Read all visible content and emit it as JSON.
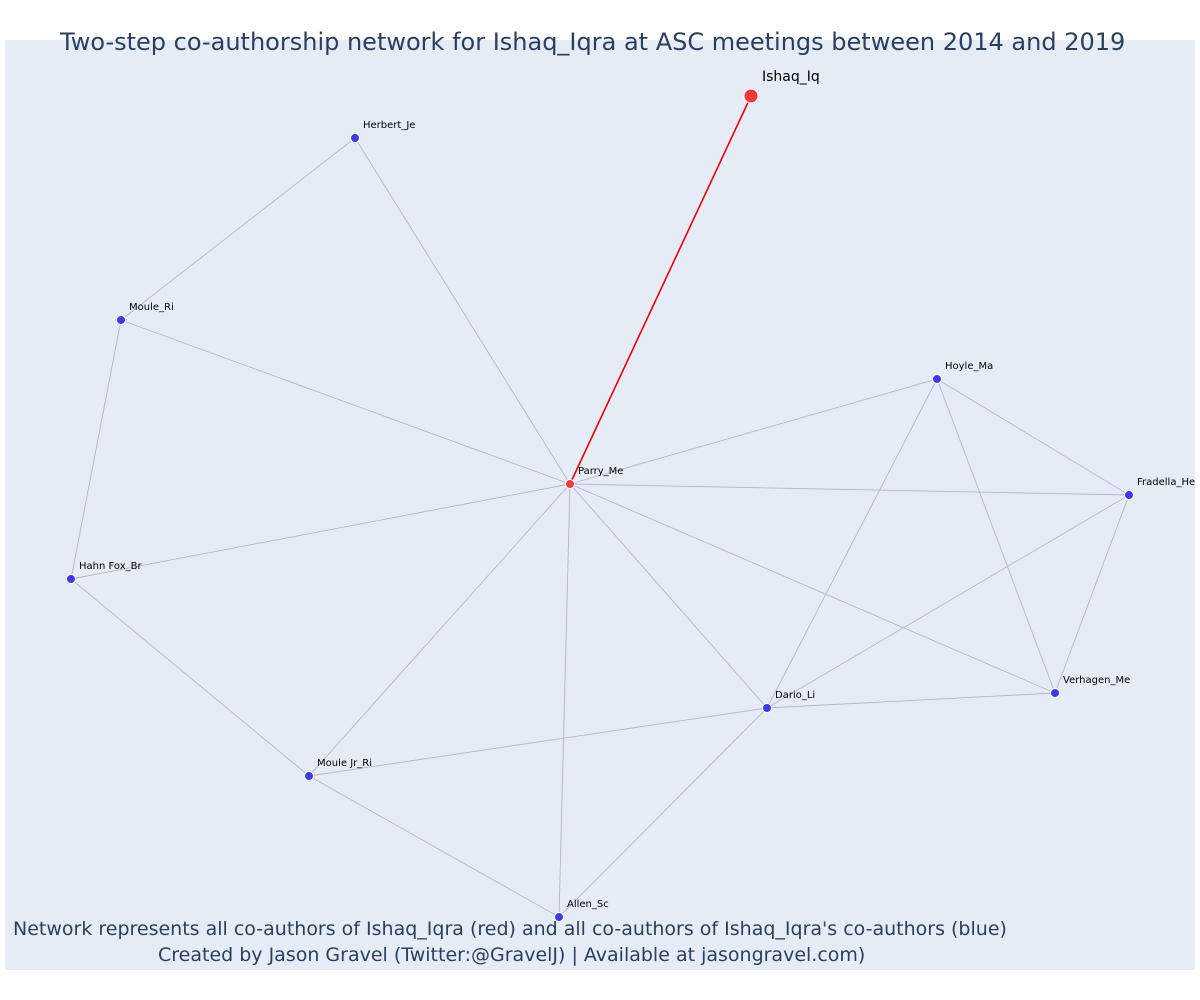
{
  "title": "Two-step co-authorship network for Ishaq_Iqra at ASC meetings between 2014 and 2019",
  "caption": {
    "line1": "Network represents all co-authors of Ishaq_Iqra (red) and all co-authors of Ishaq_Iqra's co-authors (blue)",
    "line2": "Created by Jason Gravel (Twitter:@GravelJ) | Available at jasongravel.com)"
  },
  "colors": {
    "plot_background": "#e5ecf6",
    "focal": "#ef3b3b",
    "coauthor": "#3c3ce6",
    "focal_edge": "#e8000b",
    "edge": "#b3b6c9",
    "text": "#2a3f5f"
  },
  "nodes": [
    {
      "id": "Ishaq_Iq",
      "label": "Ishaq_Iq",
      "group": "focal"
    },
    {
      "id": "Parry_Me",
      "label": "Parry_Me",
      "group": "first_step"
    },
    {
      "id": "Herbert_Je",
      "label": "Herbert_Je",
      "group": "second_step"
    },
    {
      "id": "Moule_Ri",
      "label": "Moule_Ri",
      "group": "second_step"
    },
    {
      "id": "Hahn Fox_Br",
      "label": "Hahn Fox_Br",
      "group": "second_step"
    },
    {
      "id": "Moule Jr_Ri",
      "label": "Moule Jr_Ri",
      "group": "second_step"
    },
    {
      "id": "Allen_Sc",
      "label": "Allen_Sc",
      "group": "second_step"
    },
    {
      "id": "Dario_Li",
      "label": "Dario_Li",
      "group": "second_step"
    },
    {
      "id": "Verhagen_Me",
      "label": "Verhagen_Me",
      "group": "second_step"
    },
    {
      "id": "Fradella_He",
      "label": "Fradella_He",
      "group": "second_step"
    },
    {
      "id": "Hoyle_Ma",
      "label": "Hoyle_Ma",
      "group": "second_step"
    }
  ],
  "edges": [
    {
      "source": "Ishaq_Iq",
      "target": "Parry_Me",
      "focal": true
    },
    {
      "source": "Parry_Me",
      "target": "Herbert_Je"
    },
    {
      "source": "Parry_Me",
      "target": "Moule_Ri"
    },
    {
      "source": "Parry_Me",
      "target": "Hahn Fox_Br"
    },
    {
      "source": "Parry_Me",
      "target": "Moule Jr_Ri"
    },
    {
      "source": "Parry_Me",
      "target": "Allen_Sc"
    },
    {
      "source": "Parry_Me",
      "target": "Dario_Li"
    },
    {
      "source": "Parry_Me",
      "target": "Verhagen_Me"
    },
    {
      "source": "Parry_Me",
      "target": "Fradella_He"
    },
    {
      "source": "Parry_Me",
      "target": "Hoyle_Ma"
    },
    {
      "source": "Herbert_Je",
      "target": "Moule_Ri"
    },
    {
      "source": "Moule_Ri",
      "target": "Hahn Fox_Br"
    },
    {
      "source": "Hahn Fox_Br",
      "target": "Moule Jr_Ri"
    },
    {
      "source": "Moule Jr_Ri",
      "target": "Allen_Sc"
    },
    {
      "source": "Moule Jr_Ri",
      "target": "Dario_Li"
    },
    {
      "source": "Allen_Sc",
      "target": "Dario_Li"
    },
    {
      "source": "Dario_Li",
      "target": "Verhagen_Me"
    },
    {
      "source": "Dario_Li",
      "target": "Hoyle_Ma"
    },
    {
      "source": "Dario_Li",
      "target": "Fradella_He"
    },
    {
      "source": "Hoyle_Ma",
      "target": "Fradella_He"
    },
    {
      "source": "Hoyle_Ma",
      "target": "Verhagen_Me"
    },
    {
      "source": "Fradella_He",
      "target": "Verhagen_Me"
    }
  ]
}
